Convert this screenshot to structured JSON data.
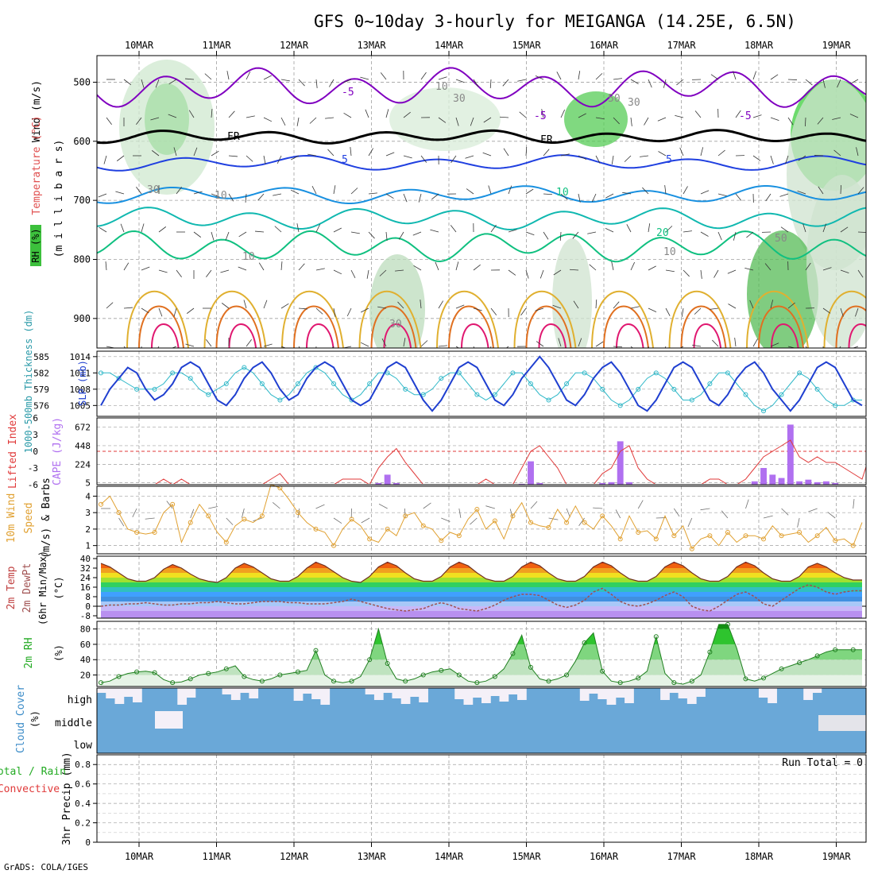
{
  "title": "GFS 0~10day 3-hourly for MEIGANGA (14.25E, 6.5N)",
  "footer": "GrADS: COLA/IGES",
  "dates": [
    "10MAR",
    "11MAR",
    "12MAR",
    "13MAR",
    "14MAR",
    "15MAR",
    "16MAR",
    "17MAR",
    "18MAR",
    "19MAR"
  ],
  "colors": {
    "axis": "#000000",
    "grid": "#a0a0a0",
    "slp": "#1f3fd0",
    "thick": "#2fb8c8",
    "li": "#e03a3a",
    "cape": "#b070f0",
    "wind": "#e0a030",
    "barb": "#707070",
    "rh": "#22aa22",
    "cloud": "#6aa8d8",
    "cloud_clear": "#f4f0f8",
    "temp_hot": "#c01010",
    "dewpt": "#a05050",
    "freezing": "#000000",
    "iso_purple": "#8000c0",
    "iso_blue": "#2040e0",
    "iso_lightblue": "#1890e0",
    "iso_teal": "#10b8b0",
    "iso_green": "#10c080",
    "iso_yellow": "#e0b030",
    "iso_orange": "#e07020",
    "iso_pink": "#e01870"
  },
  "panels": {
    "upper": {
      "ylabel_wind": "Wind (m/s)",
      "ylabel_temp": "Temperature (°C)",
      "ylabel_mb": "(m i l l i b a r s)",
      "legend_rh": "RH (%)",
      "yticks": [
        "500",
        "600",
        "700",
        "800",
        "900"
      ],
      "contour_labels": [
        "-5",
        "-5",
        "-5",
        "FR",
        "FR",
        "5",
        "5",
        "10",
        "20",
        "30",
        "10",
        "30",
        "10",
        "30",
        "50",
        "50",
        "30",
        "10",
        "10"
      ]
    },
    "slp": {
      "ylabel_left": "1000-500mb Thickness (dm)",
      "ylabel_right": "SLP (mb)",
      "left_ticks": [
        "576",
        "579",
        "582",
        "585"
      ],
      "right_ticks": [
        "1005",
        "1008",
        "1011",
        "1014"
      ]
    },
    "cape": {
      "ylabel_li": "Lifted Index",
      "ylabel_cape": "CAPE (J/kg)",
      "li_ticks": [
        "6",
        "3",
        "0",
        "-3",
        "-6"
      ],
      "cape_ticks": [
        "5",
        "224",
        "448",
        "672"
      ]
    },
    "wind": {
      "ylabel1": "10m Wind",
      "ylabel2": "Speed",
      "ylabel3": "(m/s) & Barbs",
      "yticks": [
        "1",
        "2",
        "3",
        "4"
      ]
    },
    "temp": {
      "ylabel1": "2m Temp",
      "ylabel2": "2m DewPt",
      "ylabel3": "(6hr Min/Max)",
      "ylabel4": "(°C)",
      "yticks": [
        "-8",
        "0",
        "8",
        "16",
        "24",
        "32",
        "40"
      ]
    },
    "rh": {
      "ylabel1": "2m RH",
      "ylabel2": "(%)",
      "yticks": [
        "20",
        "40",
        "60",
        "80"
      ]
    },
    "cloud": {
      "ylabel1": "Cloud Cover",
      "ylabel2": "(%)",
      "levels": [
        "high",
        "middle",
        "low"
      ]
    },
    "precip": {
      "ylabel1": "3hr Precip (mm)",
      "ylabel2": "Total / Rain",
      "ylabel3": "Convective",
      "yticks": [
        "0",
        "0.2",
        "0.4",
        "0.6",
        "0.8"
      ],
      "run_total": "Run Total = 0"
    }
  },
  "chart_data": [
    {
      "type": "line",
      "panel": "slp",
      "x_start": "10MAR",
      "step_hours": 3,
      "series": [
        {
          "name": "SLP (mb)",
          "axis": "right",
          "values": [
            1005,
            1008,
            1010,
            1012,
            1011,
            1008,
            1006,
            1007,
            1009,
            1012,
            1013,
            1012,
            1009,
            1006,
            1005,
            1007,
            1010,
            1012,
            1013,
            1011,
            1008,
            1006,
            1007,
            1010,
            1012,
            1013,
            1012,
            1009,
            1006,
            1005,
            1006,
            1009,
            1012,
            1013,
            1012,
            1009,
            1006,
            1004,
            1006,
            1009,
            1012,
            1013,
            1012,
            1009,
            1006,
            1005,
            1007,
            1010,
            1012,
            1014,
            1012,
            1009,
            1006,
            1005,
            1007,
            1010,
            1012,
            1013,
            1011,
            1008,
            1005,
            1004,
            1006,
            1009,
            1012,
            1013,
            1012,
            1009,
            1006,
            1005,
            1007,
            1010,
            1012,
            1013,
            1011,
            1008,
            1006,
            1004,
            1006,
            1009,
            1012,
            1013,
            1012,
            1009,
            1006,
            1005
          ]
        },
        {
          "name": "1000-500mb Thickness (dm)",
          "axis": "left",
          "values": [
            582,
            582,
            581,
            580,
            579,
            579,
            579,
            580,
            582,
            582,
            581,
            579,
            578,
            579,
            580,
            582,
            583,
            582,
            580,
            578,
            577,
            578,
            580,
            582,
            583,
            582,
            580,
            578,
            577,
            578,
            580,
            582,
            582,
            581,
            579,
            578,
            578,
            579,
            581,
            582,
            582,
            580,
            578,
            577,
            578,
            580,
            582,
            582,
            580,
            578,
            577,
            578,
            580,
            582,
            582,
            581,
            579,
            577,
            576,
            577,
            579,
            581,
            582,
            581,
            579,
            577,
            577,
            578,
            580,
            582,
            582,
            580,
            578,
            576,
            575,
            576,
            578,
            580,
            582,
            581,
            579,
            577,
            576,
            576,
            577,
            577
          ]
        }
      ]
    },
    {
      "type": "bar",
      "panel": "cape",
      "x_start": "10MAR",
      "step_hours": 3,
      "series": [
        {
          "name": "CAPE (J/kg)",
          "values": [
            0,
            0,
            0,
            0,
            0,
            0,
            0,
            0,
            0,
            0,
            0,
            0,
            0,
            0,
            0,
            0,
            0,
            0,
            0,
            0,
            0,
            0,
            0,
            0,
            0,
            0,
            0,
            0,
            0,
            0,
            0,
            20,
            120,
            20,
            0,
            0,
            0,
            0,
            0,
            0,
            0,
            0,
            0,
            0,
            0,
            0,
            0,
            10,
            280,
            20,
            0,
            0,
            0,
            0,
            0,
            0,
            20,
            30,
            520,
            30,
            0,
            0,
            0,
            0,
            0,
            0,
            0,
            0,
            0,
            0,
            0,
            0,
            0,
            40,
            200,
            120,
            80,
            720,
            40,
            60,
            30,
            40,
            20,
            0,
            0,
            0
          ]
        },
        {
          "name": "Lifted Index",
          "values": [
            6,
            6,
            6,
            6,
            6,
            6,
            6,
            5,
            6,
            5,
            6,
            6,
            6,
            6,
            6,
            6,
            6,
            6,
            6,
            5,
            4,
            6,
            6,
            6,
            6,
            6,
            6,
            5,
            5,
            5,
            6,
            3,
            1,
            -0.5,
            2,
            4,
            6,
            6,
            6,
            6,
            6,
            6,
            6,
            5,
            6,
            6,
            6,
            3,
            0,
            -1,
            1,
            3,
            6,
            6,
            6,
            6,
            4,
            3,
            0,
            -1,
            3,
            5,
            6,
            6,
            6,
            6,
            6,
            6,
            5,
            5,
            6,
            6,
            5,
            3,
            1,
            0,
            -1,
            -2,
            1,
            2,
            1,
            2,
            2,
            3,
            4,
            5,
            0
          ]
        }
      ]
    },
    {
      "type": "line",
      "panel": "wind",
      "x_start": "10MAR",
      "step_hours": 3,
      "series": [
        {
          "name": "10m Wind Speed (m/s)",
          "values": [
            3.5,
            4,
            3,
            2,
            1.8,
            1.7,
            1.8,
            3,
            3.5,
            1.2,
            2.4,
            3.5,
            2.8,
            1.8,
            1.2,
            2.2,
            2.6,
            2.4,
            2.8,
            4.7,
            4.5,
            3.8,
            3,
            2.4,
            2,
            1.8,
            1,
            2,
            2.6,
            2.2,
            1.4,
            1.2,
            2,
            1.6,
            2.8,
            3,
            2.2,
            2,
            1.3,
            1.8,
            1.6,
            2.6,
            3.2,
            2,
            2.5,
            1.4,
            2.8,
            3.6,
            2.4,
            2.2,
            2.1,
            3.2,
            2.4,
            3.4,
            2.4,
            2,
            2.8,
            2.2,
            1.4,
            2.8,
            1.8,
            1.9,
            1.4,
            2.8,
            1.6,
            2.2,
            0.8,
            1.4,
            1.6,
            1,
            1.8,
            1.2,
            1.6,
            1.6,
            1.4,
            2.2,
            1.6,
            1.7,
            1.8,
            1.2,
            1.6,
            2.1,
            1.3,
            1.4,
            1,
            2.4
          ]
        }
      ]
    },
    {
      "type": "area",
      "panel": "temp",
      "x_start": "10MAR",
      "step_hours": 3,
      "series": [
        {
          "name": "2m Temp (°C)",
          "values": [
            36,
            33,
            28,
            23,
            21,
            21,
            24,
            31,
            35,
            32,
            27,
            23,
            21,
            20,
            24,
            32,
            36,
            33,
            28,
            23,
            21,
            21,
            25,
            32,
            37,
            34,
            29,
            24,
            21,
            20,
            25,
            33,
            37,
            34,
            28,
            23,
            21,
            21,
            25,
            33,
            37,
            34,
            28,
            23,
            21,
            21,
            25,
            33,
            37,
            34,
            28,
            23,
            21,
            21,
            25,
            33,
            37,
            34,
            28,
            23,
            21,
            21,
            25,
            33,
            37,
            34,
            28,
            23,
            21,
            21,
            25,
            33,
            37,
            34,
            28,
            23,
            21,
            21,
            25,
            33,
            36,
            33,
            28,
            24,
            22,
            22
          ]
        },
        {
          "name": "2m DewPt (°C)",
          "values": [
            0,
            1,
            1,
            2,
            2,
            3,
            2,
            1,
            1,
            2,
            2,
            3,
            3,
            4,
            3,
            2,
            2,
            3,
            4,
            4,
            4,
            3,
            3,
            2,
            2,
            2,
            3,
            4,
            6,
            4,
            2,
            0,
            -2,
            -3,
            -4,
            -3,
            -2,
            1,
            3,
            1,
            -2,
            -3,
            -4,
            -2,
            1,
            5,
            8,
            10,
            10,
            9,
            5,
            1,
            -1,
            1,
            5,
            12,
            15,
            10,
            4,
            1,
            0,
            2,
            5,
            9,
            12,
            8,
            0,
            -3,
            -4,
            0,
            5,
            10,
            12,
            8,
            2,
            0,
            5,
            10,
            15,
            18,
            16,
            12,
            10,
            12,
            13,
            13
          ]
        }
      ]
    },
    {
      "type": "area",
      "panel": "rh",
      "x_start": "10MAR",
      "step_hours": 3,
      "series": [
        {
          "name": "2m RH (%)",
          "values": [
            10,
            12,
            18,
            22,
            24,
            25,
            23,
            14,
            10,
            11,
            15,
            20,
            22,
            24,
            28,
            32,
            18,
            14,
            12,
            15,
            20,
            22,
            24,
            26,
            52,
            20,
            12,
            10,
            12,
            18,
            40,
            80,
            35,
            15,
            12,
            15,
            20,
            24,
            26,
            28,
            20,
            12,
            10,
            12,
            18,
            28,
            48,
            72,
            30,
            15,
            12,
            15,
            20,
            38,
            62,
            75,
            25,
            12,
            10,
            12,
            16,
            25,
            70,
            22,
            10,
            8,
            12,
            20,
            50,
            86,
            86,
            55,
            15,
            12,
            16,
            22,
            28,
            32,
            36,
            40,
            45,
            50,
            53,
            53,
            53,
            53
          ]
        }
      ]
    },
    {
      "type": "heatmap",
      "panel": "cloud",
      "levels": [
        "high",
        "middle",
        "low"
      ],
      "note": "blue = cloud cover"
    },
    {
      "type": "bar",
      "panel": "precip",
      "series": [
        {
          "name": "3hr Precip (mm)",
          "values": []
        }
      ],
      "ylim": [
        0,
        0.8
      ]
    }
  ]
}
